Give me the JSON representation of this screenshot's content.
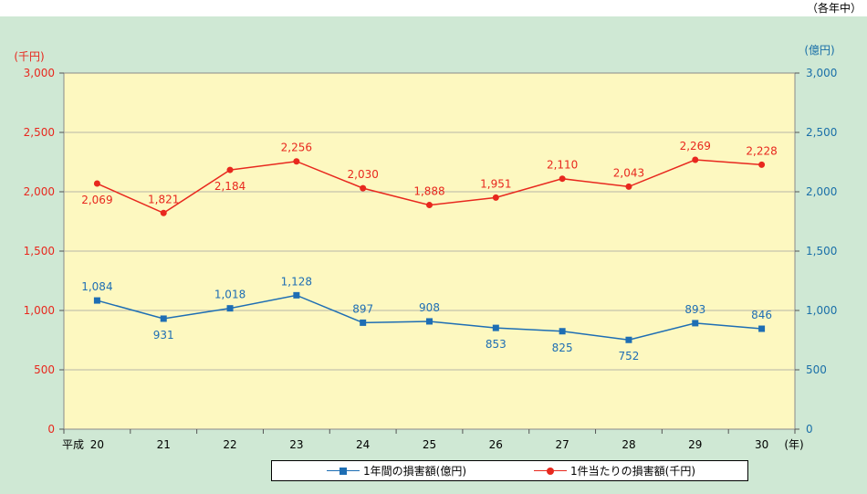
{
  "note": "（各年中）",
  "chart_data": {
    "type": "line",
    "x_prefix": "平成",
    "x_unit": "(年)",
    "categories": [
      "20",
      "21",
      "22",
      "23",
      "24",
      "25",
      "26",
      "27",
      "28",
      "29",
      "30"
    ],
    "y_left": {
      "unit": "(千円)",
      "ticks": [
        "0",
        "500",
        "1,000",
        "1,500",
        "2,000",
        "2,500",
        "3,000"
      ],
      "range": [
        0,
        3000
      ]
    },
    "y_right": {
      "unit": "(億円)",
      "ticks": [
        "0",
        "500",
        "1,000",
        "1,500",
        "2,000",
        "2,500",
        "3,000"
      ],
      "range": [
        0,
        3000
      ]
    },
    "grid": true,
    "series": [
      {
        "name": "1年間の損害額(億円)",
        "axis": "right",
        "marker": "square",
        "values": [
          1084,
          931,
          1018,
          1128,
          897,
          908,
          853,
          825,
          752,
          893,
          846
        ],
        "labels": [
          "1,084",
          "931",
          "1,018",
          "1,128",
          "897",
          "908",
          "853",
          "825",
          "752",
          "893",
          "846"
        ],
        "label_pos": [
          "above",
          "below",
          "above",
          "above",
          "above",
          "above",
          "below",
          "below",
          "below",
          "above",
          "above"
        ]
      },
      {
        "name": "1件当たりの損害額(千円)",
        "axis": "left",
        "marker": "circle",
        "values": [
          2069,
          1821,
          2184,
          2256,
          2030,
          1888,
          1951,
          2110,
          2043,
          2269,
          2228
        ],
        "labels": [
          "2,069",
          "1,821",
          "2,184",
          "2,256",
          "2,030",
          "1,888",
          "1,951",
          "2,110",
          "2,043",
          "2,269",
          "2,228"
        ],
        "label_pos": [
          "below",
          "above",
          "below",
          "above",
          "above",
          "above",
          "above",
          "above",
          "above",
          "above",
          "above"
        ]
      }
    ],
    "legend_position": "bottom"
  },
  "colors": {
    "outer_bg": "#cfe8d4",
    "plot_bg": "#fdf8c0",
    "grid": "#a0a0a0",
    "left_axis_text": "#e8281e",
    "right_axis_text": "#1a6fa8",
    "series_blue": "#1e6eb4",
    "series_red": "#e8281e",
    "axis_black": "#000000"
  }
}
